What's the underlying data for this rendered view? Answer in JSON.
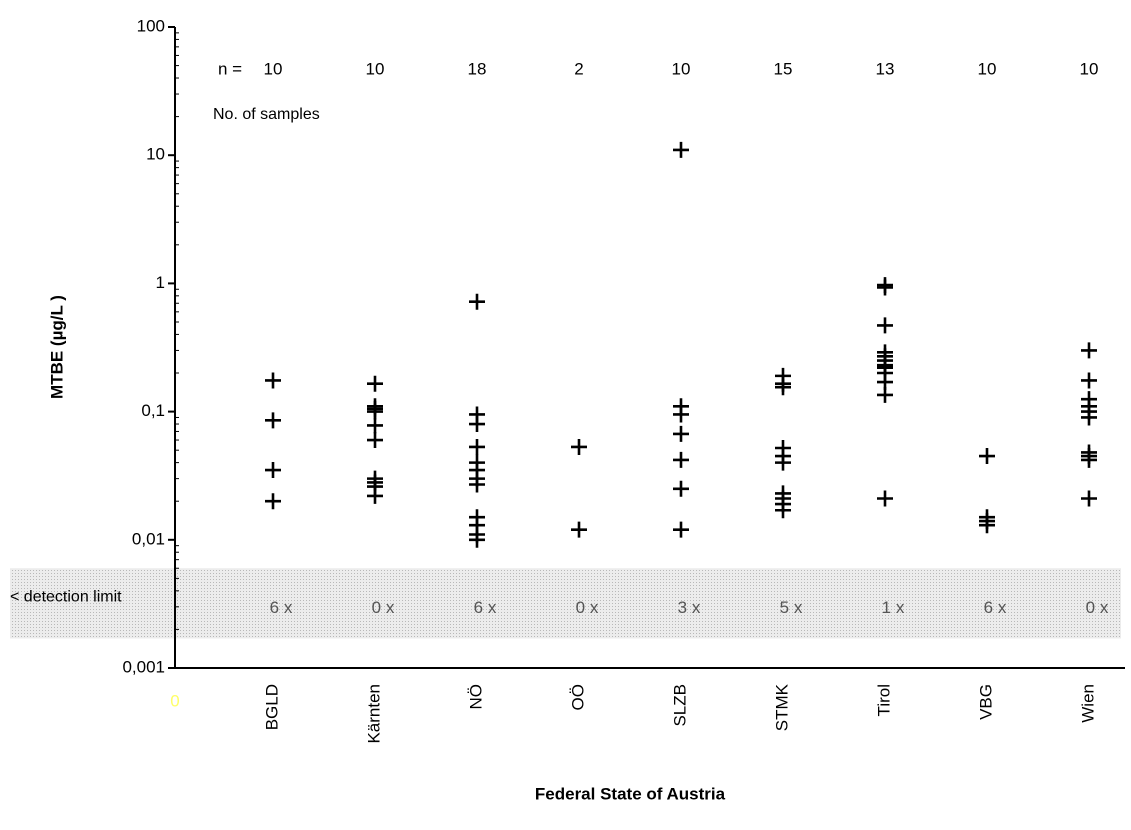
{
  "chart_data": {
    "type": "scatter",
    "title_y": "MTBE (µg/L )",
    "title_x": "Federal State of Austria",
    "origin_label": "0",
    "categories": [
      "BGLD",
      "Kärnten",
      "NÖ",
      "OÖ",
      "SLZB",
      "STMK",
      "Tirol",
      "VBG",
      "Wien"
    ],
    "values": [
      [
        0.175,
        0.0855,
        0.035,
        0.02
      ],
      [
        0.165,
        0.11,
        0.105,
        0.1,
        0.078,
        0.06,
        0.03,
        0.028,
        0.026,
        0.022
      ],
      [
        0.72,
        0.095,
        0.08,
        0.053,
        0.04,
        0.035,
        0.03,
        0.027,
        0.015,
        0.013,
        0.011,
        0.01
      ],
      [
        0.053,
        0.012
      ],
      [
        11,
        0.11,
        0.095,
        0.067,
        0.042,
        0.025,
        0.012
      ],
      [
        0.19,
        0.165,
        0.155,
        0.052,
        0.045,
        0.04,
        0.023,
        0.021,
        0.019,
        0.017
      ],
      [
        0.97,
        0.93,
        0.47,
        0.29,
        0.27,
        0.25,
        0.23,
        0.22,
        0.2,
        0.17,
        0.135,
        0.021
      ],
      [
        0.045,
        0.015,
        0.014,
        0.013
      ],
      [
        0.3,
        0.175,
        0.125,
        0.11,
        0.1,
        0.09,
        0.048,
        0.045,
        0.042,
        0.021
      ]
    ],
    "color": "#000000",
    "n_prefix": "n =",
    "n_counts": [
      10,
      10,
      18,
      2,
      10,
      15,
      13,
      10,
      10
    ],
    "samples_label": "No. of samples",
    "detection_label": "< detection limit",
    "detection_band": [
      0.0017,
      0.006
    ],
    "below_detection": {
      "values": [
        6,
        0,
        6,
        0,
        3,
        5,
        1,
        6,
        0
      ],
      "value_labels": [
        "6 x",
        "0 x",
        "6 x",
        "0 x",
        "3 x",
        "5 x",
        "1 x",
        "6 x",
        "0 x"
      ]
    },
    "log_scale": true,
    "minor_ticks": true,
    "ylim": [
      0.001,
      100
    ],
    "yticks": [
      {
        "value": 0.001,
        "label": "0,001"
      },
      {
        "value": 0.01,
        "label": "0,01"
      },
      {
        "value": 0.1,
        "label": "0,1"
      },
      1,
      10,
      100
    ]
  }
}
